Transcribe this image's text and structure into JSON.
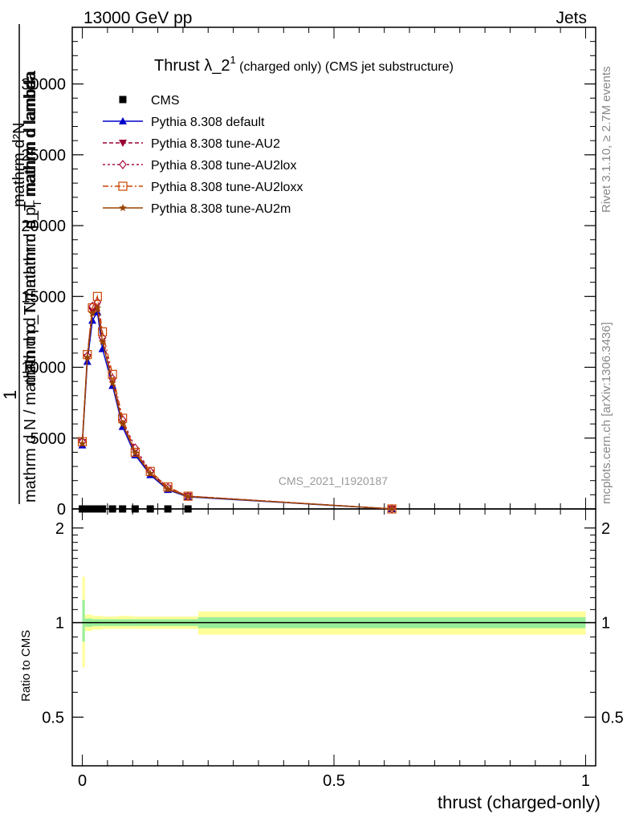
{
  "header": {
    "left": "13000 GeV pp",
    "right": "Jets"
  },
  "title": {
    "main": "Thrust λ_2",
    "sup": "1",
    "sub": " (charged only) (CMS jet substructure)"
  },
  "watermark": "CMS_2021_I1920187",
  "side_labels": {
    "rivet": "Rivet 3.1.10, ≥ 2.7M events",
    "mcplots": "mcplots.cern.ch [arXiv:1306.3436]"
  },
  "ylabel_main": {
    "numerator": "mathrm d²N",
    "denominator": "mathrm d N / mathrm d p_T mathrm d p_T mathrm d lambda",
    "one": "1",
    "frac_top": "mathrm d N / mathrm d p",
    "frac_sub": "T",
    "frac_rest": " mathrm d lambda"
  },
  "ylabel_ratio": "Ratio to CMS",
  "xlabel": "thrust (charged-only)",
  "legend": [
    {
      "name": "CMS",
      "color": "#000000",
      "marker": "square"
    },
    {
      "name": "Pythia 8.308 default",
      "color": "#0000cc",
      "marker": "triangle-up"
    },
    {
      "name": "Pythia 8.308 tune-AU2",
      "color": "#990033",
      "marker": "triangle-down"
    },
    {
      "name": "Pythia 8.308 tune-AU2lox",
      "color": "#aa1144",
      "marker": "diamond-open"
    },
    {
      "name": "Pythia 8.308 tune-AU2loxx",
      "color": "#cc4400",
      "marker": "square-open"
    },
    {
      "name": "Pythia 8.308 tune-AU2m",
      "color": "#994400",
      "marker": "star"
    }
  ],
  "chart_data": [
    {
      "type": "line",
      "panel": "main",
      "xlim": [
        -0.02,
        1.02
      ],
      "ylim": [
        0,
        34000
      ],
      "yticks": [
        0,
        5000,
        10000,
        15000,
        20000,
        25000,
        30000
      ],
      "ytick_labels": [
        "0",
        "5000",
        "10000",
        "15000",
        "20000",
        "25000",
        "30000"
      ],
      "x": [
        0.0,
        0.01,
        0.02,
        0.03,
        0.04,
        0.06,
        0.08,
        0.105,
        0.135,
        0.17,
        0.21,
        0.615
      ],
      "cms": [
        0,
        0,
        0,
        0,
        0,
        0,
        0,
        0,
        0,
        0,
        0,
        0
      ],
      "series": [
        {
          "name": "Pythia 8.308 default",
          "values": [
            4500,
            10400,
            13300,
            13900,
            11300,
            8700,
            5800,
            3800,
            2400,
            1350,
            850,
            0
          ]
        },
        {
          "name": "Pythia 8.308 tune-AU2",
          "values": [
            4700,
            10700,
            14000,
            14400,
            11900,
            9000,
            6100,
            4100,
            2550,
            1450,
            900,
            0
          ]
        },
        {
          "name": "Pythia 8.308 tune-AU2lox",
          "values": [
            4750,
            10800,
            14300,
            14600,
            12100,
            9200,
            6300,
            4300,
            2650,
            1500,
            900,
            0
          ]
        },
        {
          "name": "Pythia 8.308 tune-AU2loxx",
          "values": [
            4750,
            10900,
            14200,
            15000,
            12500,
            9500,
            6400,
            4000,
            2650,
            1550,
            900,
            0
          ]
        },
        {
          "name": "Pythia 8.308 tune-AU2m",
          "values": [
            4600,
            10700,
            13800,
            14200,
            11800,
            8900,
            6000,
            3950,
            2500,
            1400,
            880,
            0
          ]
        }
      ]
    },
    {
      "type": "area",
      "panel": "ratio",
      "xlim": [
        -0.02,
        1.02
      ],
      "ylim": [
        0.35,
        2.3
      ],
      "yticks": [
        0.5,
        1,
        2
      ],
      "ytick_labels": [
        "0.5",
        "1",
        "2"
      ],
      "xticks": [
        0,
        0.5,
        1
      ],
      "xtick_labels": [
        "0",
        "0.5",
        "1"
      ],
      "bins": [
        {
          "x0": 0.0,
          "x1": 0.005,
          "stat_lo": 0.87,
          "stat_hi": 1.18,
          "tot_lo": 0.72,
          "tot_hi": 1.4
        },
        {
          "x0": 0.005,
          "x1": 0.02,
          "stat_lo": 0.97,
          "stat_hi": 1.03,
          "tot_lo": 0.94,
          "tot_hi": 1.06
        },
        {
          "x0": 0.02,
          "x1": 0.04,
          "stat_lo": 0.975,
          "stat_hi": 1.025,
          "tot_lo": 0.95,
          "tot_hi": 1.05
        },
        {
          "x0": 0.04,
          "x1": 0.07,
          "stat_lo": 0.975,
          "stat_hi": 1.025,
          "tot_lo": 0.955,
          "tot_hi": 1.045
        },
        {
          "x0": 0.07,
          "x1": 0.1,
          "stat_lo": 0.975,
          "stat_hi": 1.025,
          "tot_lo": 0.955,
          "tot_hi": 1.05
        },
        {
          "x0": 0.1,
          "x1": 0.15,
          "stat_lo": 0.975,
          "stat_hi": 1.025,
          "tot_lo": 0.955,
          "tot_hi": 1.045
        },
        {
          "x0": 0.15,
          "x1": 0.23,
          "stat_lo": 0.975,
          "stat_hi": 1.025,
          "tot_lo": 0.955,
          "tot_hi": 1.045
        },
        {
          "x0": 0.23,
          "x1": 1.0,
          "stat_lo": 0.96,
          "stat_hi": 1.04,
          "tot_lo": 0.915,
          "tot_hi": 1.085
        }
      ]
    }
  ]
}
